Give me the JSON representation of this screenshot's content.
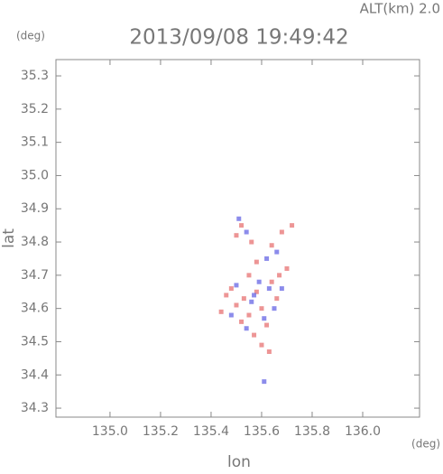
{
  "chart_data": {
    "type": "scatter",
    "title": "2013/09/08 19:49:42",
    "altitude_label": "ALT(km)  2.0",
    "y_unit": "(deg)",
    "x_unit": "(deg)",
    "xlabel": "lon",
    "ylabel": "lat",
    "xlim": [
      134.786,
      136.225
    ],
    "ylim": [
      34.273,
      35.349
    ],
    "xticks": [
      {
        "value": 135.0,
        "label": "135.0"
      },
      135.2,
      135.4,
      135.6,
      135.8,
      {
        "value": 136.0,
        "label": "136.0"
      }
    ],
    "yticks": [
      34.3,
      34.4,
      34.5,
      34.6,
      34.7,
      34.8,
      34.9,
      {
        "value": 35.0,
        "label": "35.0"
      },
      35.1,
      35.2,
      35.3
    ],
    "series": [
      {
        "color": "#e87a7a",
        "x": [
          135.52,
          135.5,
          135.56,
          135.64,
          135.68,
          135.72,
          135.46,
          135.48,
          135.5,
          135.53,
          135.55,
          135.58,
          135.6,
          135.62,
          135.64,
          135.66,
          135.57,
          135.6,
          135.63,
          135.67,
          135.52,
          135.7,
          135.55,
          135.44,
          135.58
        ],
        "values": [
          34.85,
          34.82,
          34.8,
          34.79,
          34.83,
          34.85,
          34.64,
          34.66,
          34.61,
          34.63,
          34.58,
          34.65,
          34.6,
          34.55,
          34.68,
          34.63,
          34.52,
          34.49,
          34.47,
          34.7,
          34.56,
          34.72,
          34.7,
          34.59,
          34.74
        ]
      },
      {
        "color": "#6f6fe6",
        "x": [
          135.51,
          135.54,
          135.5,
          135.56,
          135.59,
          135.61,
          135.63,
          135.65,
          135.54,
          135.48,
          135.62,
          135.66,
          135.61,
          135.57,
          135.68
        ],
        "values": [
          34.87,
          34.83,
          34.67,
          34.62,
          34.68,
          34.57,
          34.66,
          34.6,
          34.54,
          34.58,
          34.75,
          34.77,
          34.38,
          34.64,
          34.66
        ]
      }
    ]
  }
}
